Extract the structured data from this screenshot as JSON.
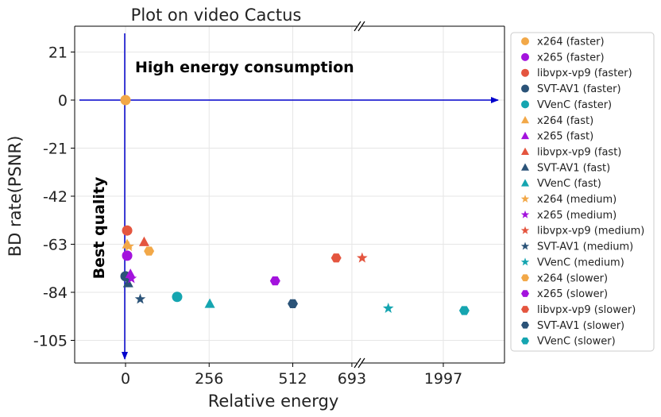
{
  "chart_data": {
    "type": "scatter",
    "title": "Plot on video Cactus",
    "xlabel": "Relative energy",
    "ylabel": "BD rate(PSNR)",
    "x_ticks_left": [
      0,
      256,
      512,
      693
    ],
    "x_ticks_right": [
      1997
    ],
    "y_ticks": [
      21,
      0,
      -21,
      -42,
      -63,
      -84,
      -105
    ],
    "ylim": [
      -115,
      32
    ],
    "x_break": true,
    "grid": true,
    "legend_position": "right",
    "annotations": {
      "top": "High energy consumption",
      "left": "Best quality"
    },
    "series": [
      {
        "name": "x264 (faster)",
        "color": "#F2A848",
        "marker": "circle",
        "x": 0,
        "y": 0
      },
      {
        "name": "x265 (faster)",
        "color": "#A313DD",
        "marker": "circle",
        "x": 5,
        "y": -68
      },
      {
        "name": "libvpx-vp9 (faster)",
        "color": "#E4553F",
        "marker": "circle",
        "x": 5,
        "y": -57
      },
      {
        "name": "SVT-AV1 (faster)",
        "color": "#2B5378",
        "marker": "circle",
        "x": 0,
        "y": -77
      },
      {
        "name": "VVenC (faster)",
        "color": "#15A5B0",
        "marker": "circle",
        "x": 158,
        "y": -86
      },
      {
        "name": "x264 (fast)",
        "color": "#F2A848",
        "marker": "triangle",
        "x": 5,
        "y": -63
      },
      {
        "name": "x265 (fast)",
        "color": "#A313DD",
        "marker": "triangle",
        "x": 15,
        "y": -76
      },
      {
        "name": "libvpx-vp9 (fast)",
        "color": "#E4553F",
        "marker": "triangle",
        "x": 57,
        "y": -62
      },
      {
        "name": "SVT-AV1 (fast)",
        "color": "#2B5378",
        "marker": "triangle",
        "x": 8,
        "y": -80
      },
      {
        "name": "VVenC (fast)",
        "color": "#15A5B0",
        "marker": "triangle",
        "x": 258,
        "y": -89
      },
      {
        "name": "x264 (medium)",
        "color": "#F2A848",
        "marker": "star",
        "x": 10,
        "y": -64
      },
      {
        "name": "x265 (medium)",
        "color": "#A313DD",
        "marker": "star",
        "x": 18,
        "y": -78
      },
      {
        "name": "libvpx-vp9 (medium)",
        "color": "#E4553F",
        "marker": "star",
        "x": 720,
        "y": -69
      },
      {
        "name": "SVT-AV1 (medium)",
        "color": "#2B5378",
        "marker": "star",
        "x": 45,
        "y": -87
      },
      {
        "name": "VVenC (medium)",
        "color": "#15A5B0",
        "marker": "star",
        "x": 1000,
        "y": -91
      },
      {
        "name": "x264 (slower)",
        "color": "#F2A848",
        "marker": "hexagon",
        "x": 72,
        "y": -66
      },
      {
        "name": "x265 (slower)",
        "color": "#A313DD",
        "marker": "hexagon",
        "x": 458,
        "y": -79
      },
      {
        "name": "libvpx-vp9 (slower)",
        "color": "#E4553F",
        "marker": "hexagon",
        "x": 645,
        "y": -69
      },
      {
        "name": "SVT-AV1 (slower)",
        "color": "#2B5378",
        "marker": "hexagon",
        "x": 512,
        "y": -89
      },
      {
        "name": "VVenC (slower)",
        "color": "#15A5B0",
        "marker": "hexagon",
        "x": 2600,
        "y": -92
      }
    ]
  }
}
